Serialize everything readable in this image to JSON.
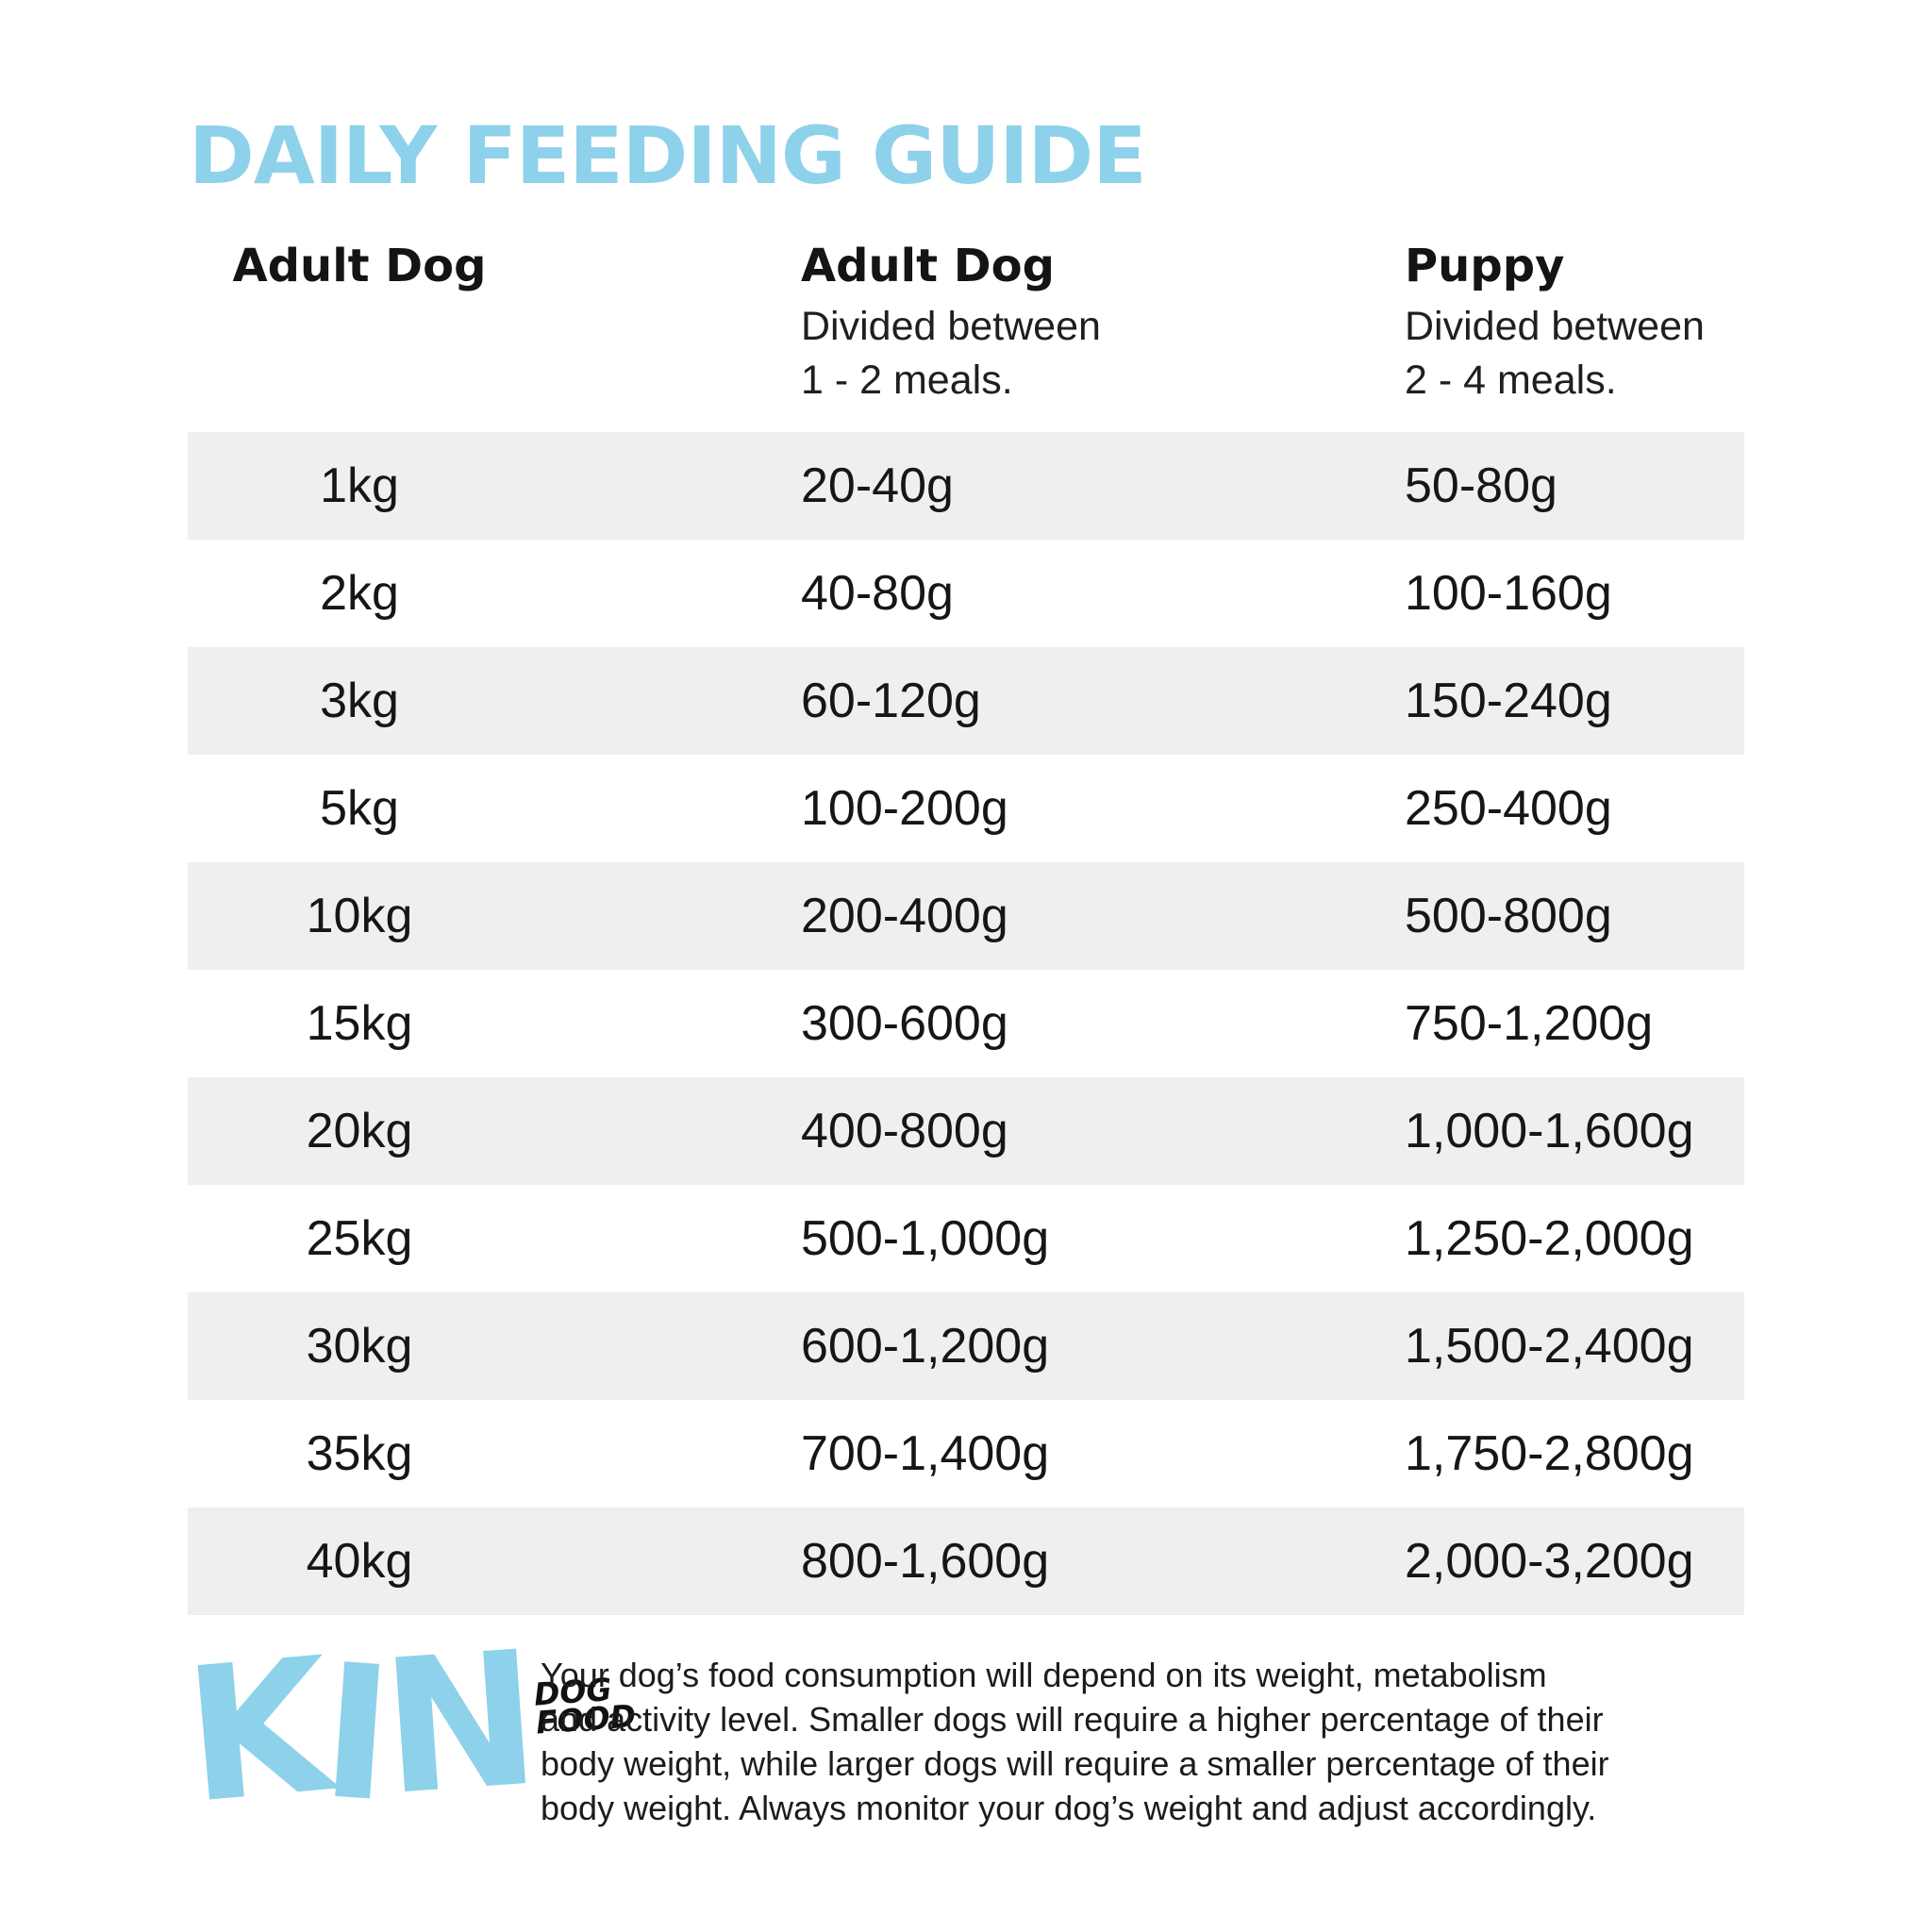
{
  "page": {
    "title": "DAILY FEEDING GUIDE"
  },
  "colors": {
    "accent_blue": "#8ED1EA",
    "row_stripe": "#EFEFEF",
    "text": "#1A1A1A"
  },
  "table": {
    "columns": [
      {
        "label": "Adult Dog",
        "sub_line1": "",
        "sub_line2": ""
      },
      {
        "label": "Adult Dog",
        "sub_line1": "Divided between",
        "sub_line2": "1 - 2 meals."
      },
      {
        "label": "Puppy",
        "sub_line1": "Divided between",
        "sub_line2": "2 - 4 meals."
      }
    ],
    "rows": [
      {
        "weight": "1kg",
        "adult": "20-40g",
        "puppy": "50-80g"
      },
      {
        "weight": "2kg",
        "adult": "40-80g",
        "puppy": "100-160g"
      },
      {
        "weight": "3kg",
        "adult": "60-120g",
        "puppy": "150-240g"
      },
      {
        "weight": "5kg",
        "adult": "100-200g",
        "puppy": "250-400g"
      },
      {
        "weight": "10kg",
        "adult": "200-400g",
        "puppy": "500-800g"
      },
      {
        "weight": "15kg",
        "adult": "300-600g",
        "puppy": "750-1,200g"
      },
      {
        "weight": "20kg",
        "adult": "400-800g",
        "puppy": "1,000-1,600g"
      },
      {
        "weight": "25kg",
        "adult": "500-1,000g",
        "puppy": "1,250-2,000g"
      },
      {
        "weight": "30kg",
        "adult": "600-1,200g",
        "puppy": "1,500-2,400g"
      },
      {
        "weight": "35kg",
        "adult": "700-1,400g",
        "puppy": "1,750-2,800g"
      },
      {
        "weight": "40kg",
        "adult": "800-1,600g",
        "puppy": "2,000-3,200g"
      }
    ]
  },
  "logo": {
    "word": "KIN",
    "letters": [
      "K",
      "I",
      "N"
    ],
    "tagline_line1": "DOG",
    "tagline_line2": "FOOD"
  },
  "footer": {
    "lines": [
      "Your dog’s food consumption will depend on its weight, metabolism",
      "and activity level.  Smaller dogs will require a higher percentage of their",
      "body weight, while larger dogs will require a smaller percentage of their",
      "body weight. Always monitor your dog’s weight and adjust accordingly."
    ]
  }
}
